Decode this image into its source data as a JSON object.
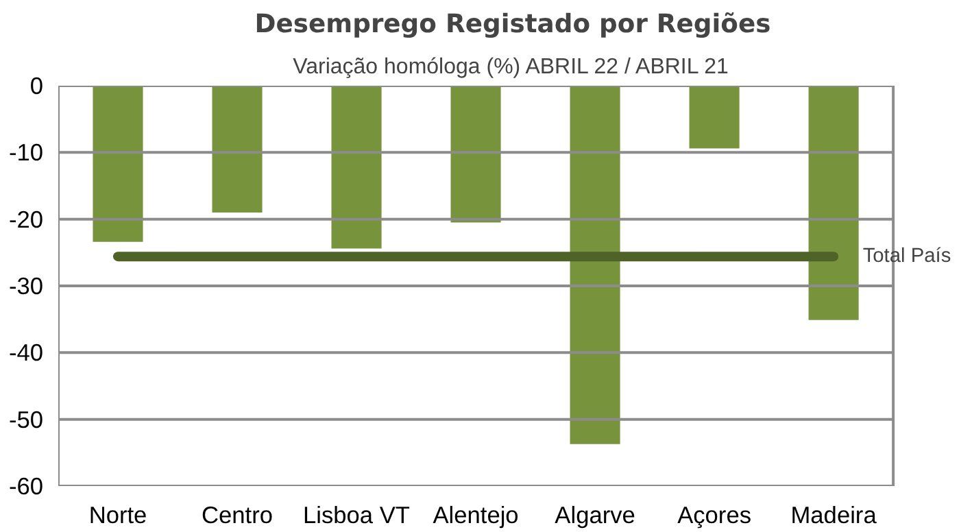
{
  "chart_data": {
    "type": "bar",
    "title": "Desemprego Registado por Regiões",
    "subtitle": "Variação homóloga (%) ABRIL 22 / ABRIL 21",
    "categories": [
      "Norte",
      "Centro",
      "Lisboa VT",
      "Alentejo",
      "Algarve",
      "Açores",
      "Madeira"
    ],
    "values": [
      -23.4,
      -19.0,
      -24.4,
      -20.5,
      -53.7,
      -9.4,
      -35.1
    ],
    "color": "#77933c",
    "ylim": [
      -60,
      0
    ],
    "yticks": [
      -60,
      -50,
      -40,
      -30,
      -20,
      -10,
      0
    ],
    "grid": "y",
    "ref_lines": [
      {
        "axis": "y",
        "value": -25.6,
        "label": "Total País",
        "color": "#4f6228"
      }
    ]
  }
}
